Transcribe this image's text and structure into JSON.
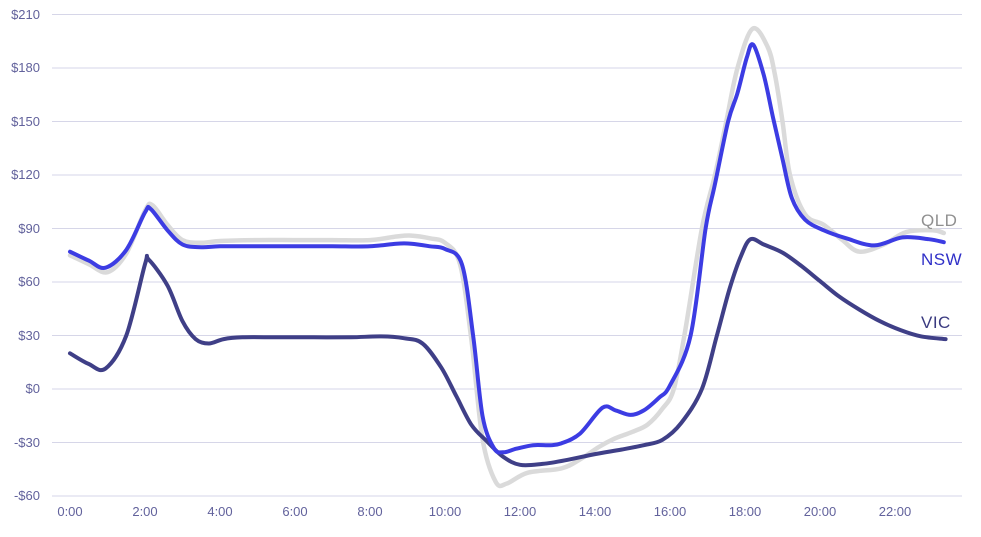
{
  "page": {
    "background": "#ffffff"
  },
  "chart_data": {
    "type": "line",
    "title": "",
    "xlabel": "",
    "ylabel": "",
    "x_unit": "time-of-day (hours)",
    "y_unit": "price ($)",
    "ylim": [
      -60,
      210
    ],
    "xlim": [
      0,
      23.8
    ],
    "grid": "horizontal-only",
    "grid_color": "#d6d6e8",
    "axis_text_color": "#62629c",
    "legend_position": "right-inline-labels",
    "y_ticks": [
      {
        "value": 210,
        "label": "$210"
      },
      {
        "value": 180,
        "label": "$180"
      },
      {
        "value": 150,
        "label": "$150"
      },
      {
        "value": 120,
        "label": "$120"
      },
      {
        "value": 90,
        "label": "$90"
      },
      {
        "value": 60,
        "label": "$60"
      },
      {
        "value": 30,
        "label": "$30"
      },
      {
        "value": 0,
        "label": "$0"
      },
      {
        "value": -30,
        "label": "-$30"
      },
      {
        "value": -60,
        "label": "-$60"
      }
    ],
    "x_ticks": [
      {
        "hour": 0,
        "label": "0:00"
      },
      {
        "hour": 2,
        "label": "2:00"
      },
      {
        "hour": 4,
        "label": "4:00"
      },
      {
        "hour": 6,
        "label": "6:00"
      },
      {
        "hour": 8,
        "label": "8:00"
      },
      {
        "hour": 10,
        "label": "10:00"
      },
      {
        "hour": 12,
        "label": "12:00"
      },
      {
        "hour": 14,
        "label": "14:00"
      },
      {
        "hour": 16,
        "label": "16:00"
      },
      {
        "hour": 18,
        "label": "18:00"
      },
      {
        "hour": 20,
        "label": "20:00"
      },
      {
        "hour": 22,
        "label": "22:00"
      }
    ],
    "series": [
      {
        "name": "QLD",
        "color": "#dadada",
        "label_color": "#909090",
        "stroke_width": 4.5,
        "label_dy": -22,
        "points": [
          [
            0,
            75
          ],
          [
            0.5,
            70
          ],
          [
            1,
            65.5
          ],
          [
            1.5,
            76
          ],
          [
            2,
            100
          ],
          [
            2.2,
            103
          ],
          [
            2.6,
            92
          ],
          [
            3,
            83.5
          ],
          [
            3.5,
            82
          ],
          [
            4,
            83
          ],
          [
            5,
            83.5
          ],
          [
            6,
            83.5
          ],
          [
            7,
            83.5
          ],
          [
            8,
            83.5
          ],
          [
            8.7,
            85.5
          ],
          [
            9.1,
            86
          ],
          [
            9.6,
            84.5
          ],
          [
            10,
            82
          ],
          [
            10.4,
            70
          ],
          [
            10.7,
            28
          ],
          [
            11,
            -28
          ],
          [
            11.35,
            -52
          ],
          [
            11.65,
            -53
          ],
          [
            12.2,
            -47
          ],
          [
            13.1,
            -44.5
          ],
          [
            13.6,
            -39.5
          ],
          [
            14.1,
            -32.5
          ],
          [
            14.5,
            -28
          ],
          [
            15,
            -24
          ],
          [
            15.4,
            -20
          ],
          [
            15.8,
            -11
          ],
          [
            16.1,
            0
          ],
          [
            16.4,
            32
          ],
          [
            16.85,
            90
          ],
          [
            17.2,
            120
          ],
          [
            17.5,
            150
          ],
          [
            17.8,
            180
          ],
          [
            18.2,
            202
          ],
          [
            18.6,
            192
          ],
          [
            18.8,
            176
          ],
          [
            19,
            150
          ],
          [
            19.2,
            120
          ],
          [
            19.6,
            98
          ],
          [
            20.1,
            92
          ],
          [
            20.6,
            83.5
          ],
          [
            21.05,
            77
          ],
          [
            21.7,
            81
          ],
          [
            22.3,
            88
          ],
          [
            23,
            89
          ],
          [
            23.3,
            87.5
          ]
        ]
      },
      {
        "name": "VIC",
        "color": "#3f3f87",
        "label_color": "#3a3a80",
        "stroke_width": 4,
        "label_dy": -26,
        "points": [
          [
            0,
            20
          ],
          [
            0.5,
            14
          ],
          [
            0.95,
            11.5
          ],
          [
            1.5,
            30
          ],
          [
            2,
            70
          ],
          [
            2.1,
            72.5
          ],
          [
            2.6,
            58
          ],
          [
            3,
            38
          ],
          [
            3.35,
            28
          ],
          [
            3.7,
            25.5
          ],
          [
            4.1,
            28
          ],
          [
            4.6,
            29
          ],
          [
            5.5,
            29
          ],
          [
            6.5,
            29
          ],
          [
            7.5,
            29
          ],
          [
            8.3,
            29.5
          ],
          [
            8.9,
            28.5
          ],
          [
            9.4,
            25.5
          ],
          [
            9.9,
            12
          ],
          [
            10.3,
            -4
          ],
          [
            10.7,
            -20
          ],
          [
            11.1,
            -29
          ],
          [
            11.55,
            -38
          ],
          [
            12,
            -42.5
          ],
          [
            12.6,
            -42
          ],
          [
            13.2,
            -40
          ],
          [
            14,
            -36.5
          ],
          [
            14.7,
            -34
          ],
          [
            15.3,
            -31.5
          ],
          [
            15.8,
            -28.5
          ],
          [
            16.3,
            -19
          ],
          [
            16.85,
            0
          ],
          [
            17.25,
            30
          ],
          [
            17.6,
            57
          ],
          [
            17.9,
            75
          ],
          [
            18.15,
            84
          ],
          [
            18.5,
            81
          ],
          [
            19,
            76.5
          ],
          [
            19.5,
            69
          ],
          [
            20,
            60.5
          ],
          [
            20.5,
            52
          ],
          [
            21.05,
            44.5
          ],
          [
            21.6,
            38
          ],
          [
            22.15,
            33
          ],
          [
            22.7,
            29.5
          ],
          [
            23.35,
            28
          ]
        ]
      },
      {
        "name": "NSW",
        "color": "#3c3ce3",
        "label_color": "#3030c8",
        "stroke_width": 4,
        "label_dy": 8,
        "points": [
          [
            0,
            77
          ],
          [
            0.5,
            72
          ],
          [
            0.95,
            68
          ],
          [
            1.5,
            78
          ],
          [
            2,
            99
          ],
          [
            2.15,
            101
          ],
          [
            2.6,
            89
          ],
          [
            3,
            81
          ],
          [
            3.5,
            79.5
          ],
          [
            4,
            80
          ],
          [
            5,
            80
          ],
          [
            6,
            80
          ],
          [
            7,
            80
          ],
          [
            8,
            80
          ],
          [
            8.7,
            81.5
          ],
          [
            9.1,
            81.5
          ],
          [
            9.6,
            80
          ],
          [
            10,
            78.5
          ],
          [
            10.45,
            70
          ],
          [
            10.75,
            30
          ],
          [
            11,
            -15
          ],
          [
            11.3,
            -33
          ],
          [
            11.55,
            -35.5
          ],
          [
            11.9,
            -33.5
          ],
          [
            12.35,
            -31.5
          ],
          [
            12.8,
            -31.5
          ],
          [
            13.1,
            -30.5
          ],
          [
            13.6,
            -25
          ],
          [
            14.2,
            -10.5
          ],
          [
            14.55,
            -12
          ],
          [
            14.95,
            -14.5
          ],
          [
            15.3,
            -12
          ],
          [
            15.7,
            -5
          ],
          [
            16,
            2
          ],
          [
            16.55,
            30
          ],
          [
            16.95,
            90
          ],
          [
            17.2,
            115
          ],
          [
            17.55,
            150
          ],
          [
            17.8,
            166
          ],
          [
            18.05,
            186
          ],
          [
            18.22,
            193
          ],
          [
            18.5,
            176
          ],
          [
            18.75,
            152
          ],
          [
            19,
            129
          ],
          [
            19.25,
            107
          ],
          [
            19.6,
            95
          ],
          [
            20.1,
            89
          ],
          [
            20.7,
            84.5
          ],
          [
            21.45,
            80.5
          ],
          [
            22.2,
            85
          ],
          [
            22.9,
            84
          ],
          [
            23.3,
            82.3
          ]
        ]
      }
    ]
  }
}
